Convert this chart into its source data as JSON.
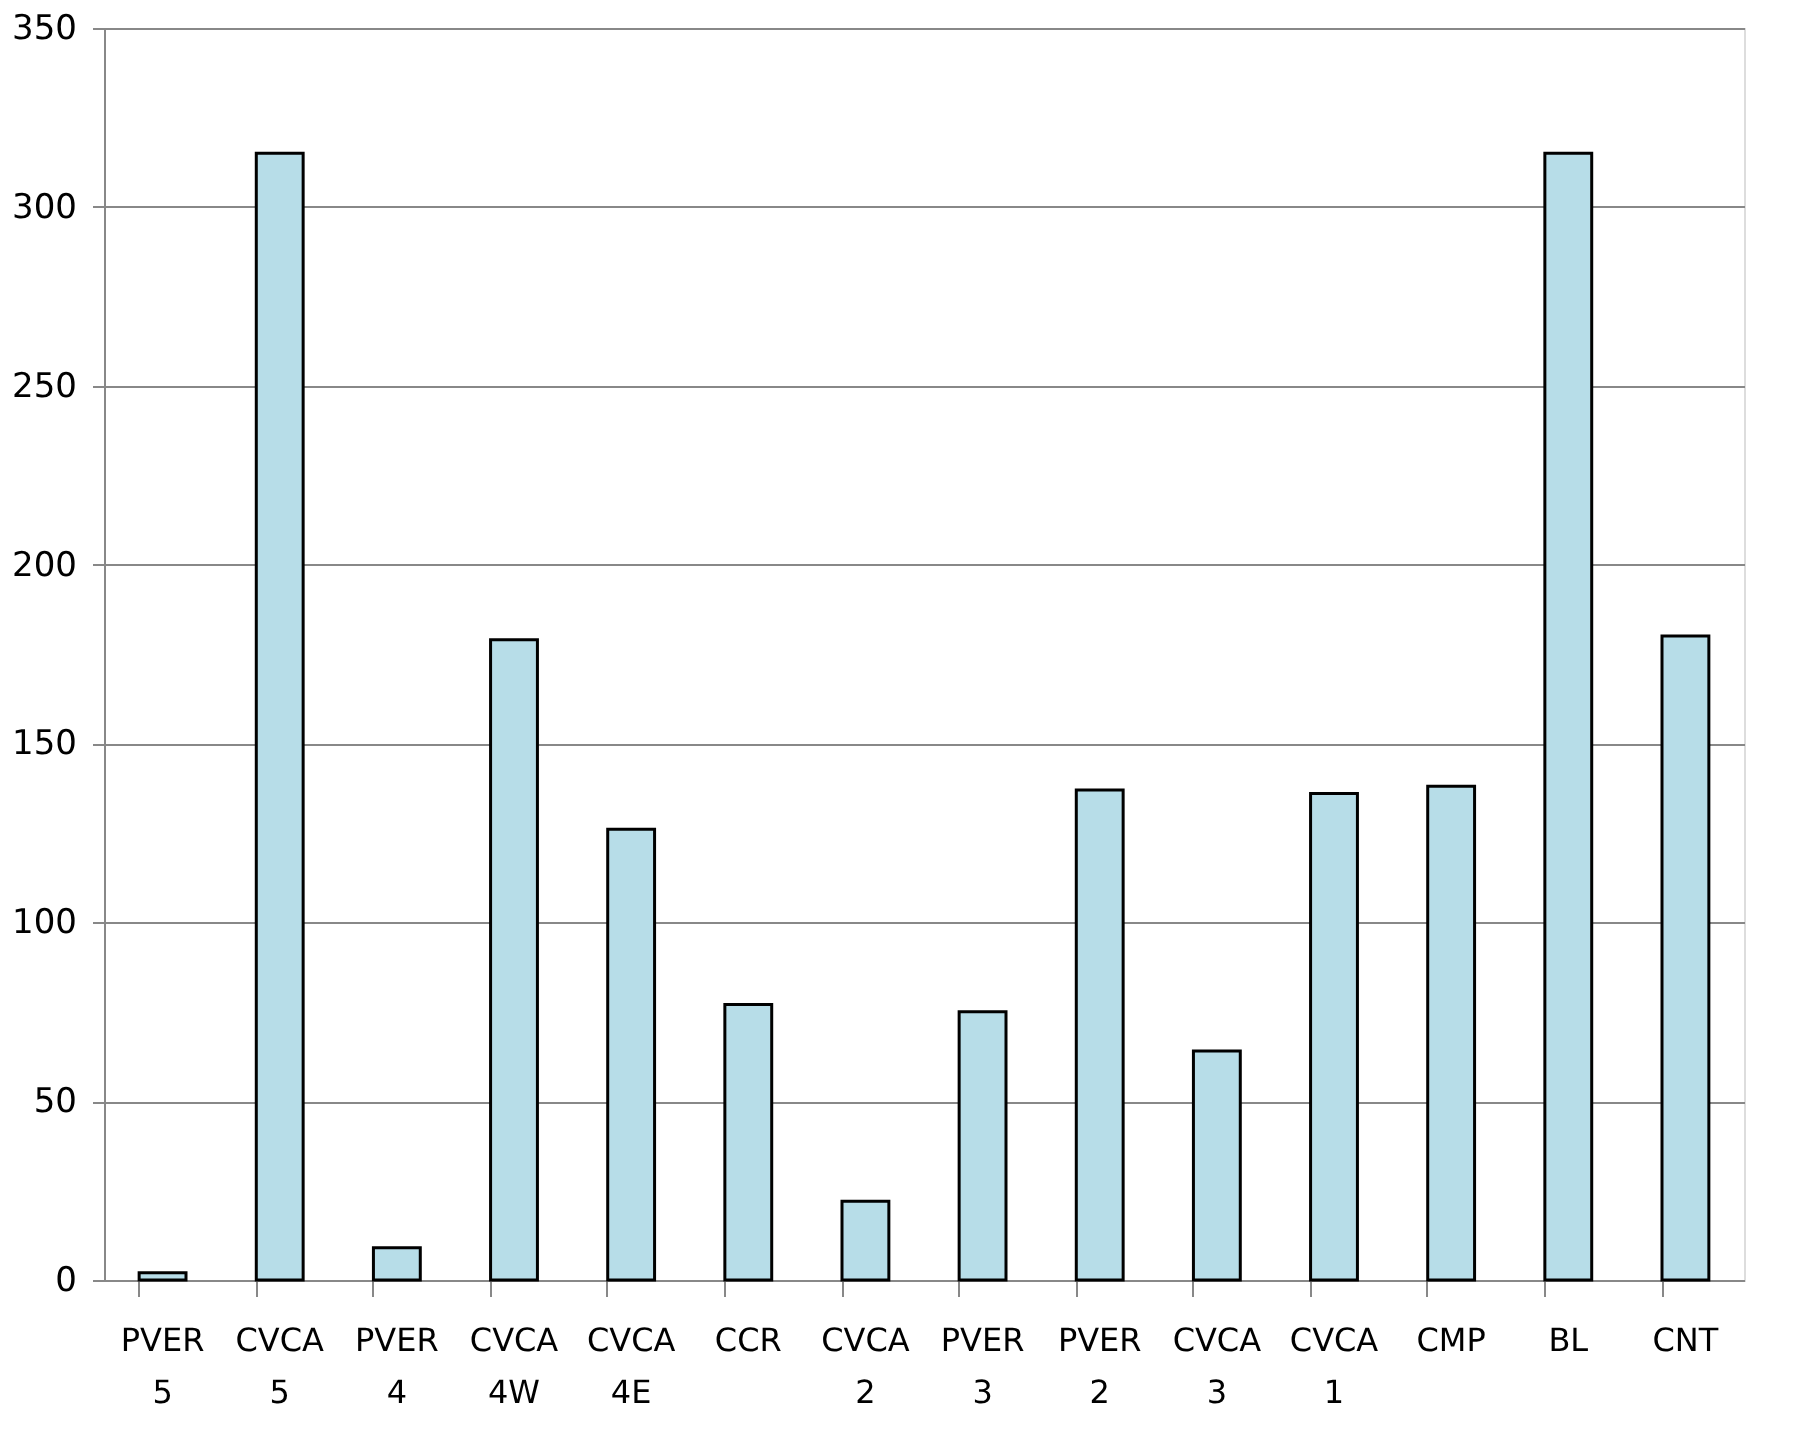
{
  "chart_data": {
    "type": "bar",
    "categories": [
      "PVER 5",
      "CVCA 5",
      "PVER 4",
      "CVCA 4W",
      "CVCA 4E",
      "CCR",
      "CVCA 2",
      "PVER 3",
      "PVER 2",
      "CVCA 3",
      "CVCA 1",
      "CMP",
      "BL",
      "CNT"
    ],
    "values": [
      2,
      315,
      9,
      179,
      126,
      77,
      22,
      75,
      137,
      64,
      136,
      138,
      315,
      180
    ],
    "color": "#b7dde8",
    "ylim": [
      0,
      350
    ],
    "yticks": [
      0,
      50,
      100,
      150,
      200,
      250,
      300,
      350
    ],
    "grid": "y"
  }
}
